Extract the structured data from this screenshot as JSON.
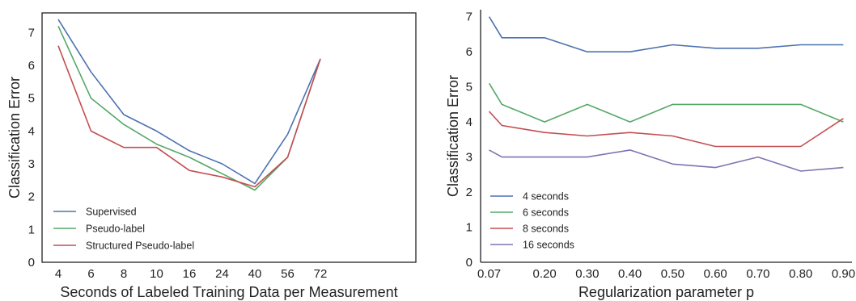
{
  "colors": {
    "blue": "#4c72b0",
    "green": "#55a868",
    "red": "#c44e52",
    "purple": "#8172b2",
    "axis": "#222222"
  },
  "chart_data": [
    {
      "type": "line",
      "xlabel": "Seconds of Labeled Training Data per Measurement",
      "ylabel": "Classification Error",
      "categories": [
        "4",
        "6",
        "8",
        "10",
        "16",
        "24",
        "40",
        "56",
        "72"
      ],
      "x_positions": [
        4,
        6,
        8,
        10,
        16,
        24,
        40,
        56,
        72
      ],
      "ylim": [
        0,
        7.6
      ],
      "yticks": [
        "0",
        "1",
        "2",
        "3",
        "4",
        "5",
        "6",
        "7"
      ],
      "grid": false,
      "legend_position": "lower-left",
      "series": [
        {
          "name": "Supervised",
          "color": "#4c72b0",
          "values": [
            7.4,
            5.8,
            4.5,
            4.0,
            3.4,
            3.0,
            2.4,
            3.9,
            6.2
          ]
        },
        {
          "name": "Pseudo-label",
          "color": "#55a868",
          "values": [
            7.2,
            5.0,
            4.2,
            3.6,
            3.2,
            2.7,
            2.2,
            3.2,
            6.2
          ]
        },
        {
          "name": "Structured Pseudo-label",
          "color": "#c44e52",
          "values": [
            6.6,
            4.0,
            3.5,
            3.5,
            2.8,
            2.6,
            2.3,
            3.2,
            6.2
          ]
        }
      ]
    },
    {
      "type": "line",
      "xlabel": "Regularization parameter p",
      "ylabel": "Classification Error",
      "x": [
        0.07,
        0.1,
        0.2,
        0.3,
        0.4,
        0.5,
        0.6,
        0.7,
        0.8,
        0.9
      ],
      "xticks": [
        "0.07",
        "0.20",
        "0.30",
        "0.40",
        "0.50",
        "0.60",
        "0.70",
        "0.80",
        "0.90"
      ],
      "xtick_values": [
        0.07,
        0.2,
        0.3,
        0.4,
        0.5,
        0.6,
        0.7,
        0.8,
        0.9
      ],
      "xlim": [
        0.05,
        0.92
      ],
      "ylim": [
        0,
        7.2
      ],
      "yticks": [
        "0",
        "1",
        "2",
        "3",
        "4",
        "5",
        "6",
        "7"
      ],
      "grid": false,
      "legend_position": "lower-left",
      "series": [
        {
          "name": "4 seconds",
          "color": "#4c72b0",
          "values": [
            7.0,
            6.4,
            6.4,
            6.0,
            6.0,
            6.2,
            6.1,
            6.1,
            6.2,
            6.2
          ]
        },
        {
          "name": "6 seconds",
          "color": "#55a868",
          "values": [
            5.1,
            4.5,
            4.0,
            4.5,
            4.0,
            4.5,
            4.5,
            4.5,
            4.5,
            4.0
          ]
        },
        {
          "name": "8 seconds",
          "color": "#c44e52",
          "values": [
            4.3,
            3.9,
            3.7,
            3.6,
            3.7,
            3.6,
            3.3,
            3.3,
            3.3,
            4.1
          ]
        },
        {
          "name": "16 seconds",
          "color": "#8172b2",
          "values": [
            3.2,
            3.0,
            3.0,
            3.0,
            3.2,
            2.8,
            2.7,
            3.0,
            2.6,
            2.7
          ]
        }
      ]
    }
  ]
}
